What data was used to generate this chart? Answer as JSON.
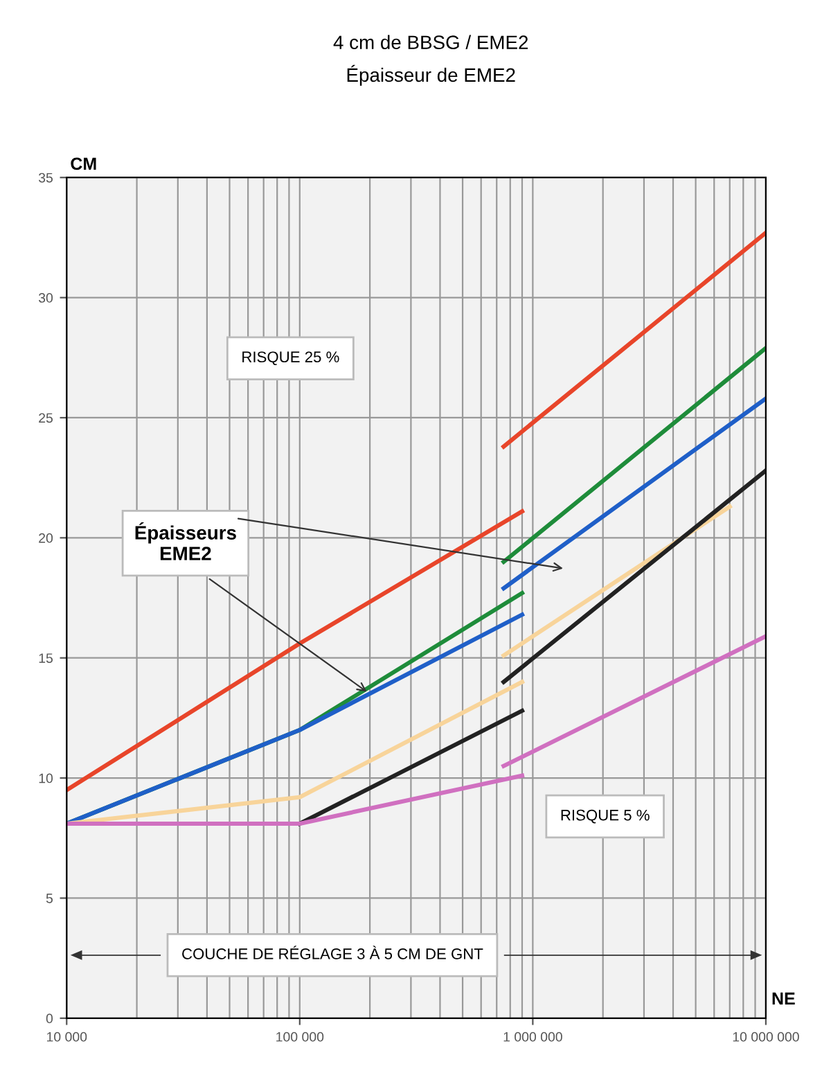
{
  "chart_data": {
    "type": "line",
    "title": "4 cm de BBSG / EME2",
    "subtitle": "Épaisseur de EME2",
    "xlabel": "NE",
    "ylabel": "CM",
    "log": "x",
    "grid": true,
    "marker": "none",
    "line_style": "solid",
    "xlim": [
      10000,
      10000000
    ],
    "xticks": [
      {
        "value": 10000,
        "label": "10 000"
      },
      {
        "value": 100000,
        "label": "100 000"
      },
      {
        "value": 1000000,
        "label": "1 000 000"
      },
      {
        "value": 10000000,
        "label": "10 000 000"
      }
    ],
    "ylim": [
      0,
      35
    ],
    "yticks": [
      0,
      5,
      10,
      15,
      20,
      25,
      30,
      35
    ],
    "series": [
      {
        "color": "#e8452a",
        "x": [
          10000,
          100000,
          900000
        ],
        "values": [
          9.5,
          15.6,
          21.1
        ]
      },
      {
        "color": "#e8452a",
        "x": [
          750000,
          10000000
        ],
        "values": [
          23.8,
          32.7
        ]
      },
      {
        "color": "#1e8c3a",
        "x": [
          10000,
          100000,
          900000
        ],
        "values": [
          8.1,
          12.0,
          17.7
        ]
      },
      {
        "color": "#1e8c3a",
        "x": [
          750000,
          10000000
        ],
        "values": [
          19.0,
          27.9
        ]
      },
      {
        "color": "#1f5fc8",
        "x": [
          10000,
          100000,
          900000
        ],
        "values": [
          8.1,
          12.0,
          16.8
        ]
      },
      {
        "color": "#1f5fc8",
        "x": [
          750000,
          10000000
        ],
        "values": [
          17.9,
          25.8
        ]
      },
      {
        "color": "#f8d49a",
        "x": [
          10000,
          100000,
          900000
        ],
        "values": [
          8.1,
          9.2,
          14.0
        ]
      },
      {
        "color": "#f8d49a",
        "x": [
          750000,
          7000000
        ],
        "values": [
          15.1,
          21.3
        ]
      },
      {
        "color": "#222222",
        "x": [
          100000,
          900000
        ],
        "values": [
          8.1,
          12.8
        ]
      },
      {
        "color": "#222222",
        "x": [
          750000,
          10000000
        ],
        "values": [
          14.0,
          22.8
        ]
      },
      {
        "color": "#d070c0",
        "x": [
          10000,
          100000,
          900000
        ],
        "values": [
          8.1,
          8.1,
          10.1
        ]
      },
      {
        "color": "#d070c0",
        "x": [
          750000,
          10000000
        ],
        "values": [
          10.5,
          15.9
        ]
      }
    ],
    "annotations": [
      "RISQUE 25 %",
      "RISQUE 5 %",
      {
        "text": "Épaisseurs\nEME2",
        "x": 200000,
        "y": 13.5
      },
      "COUCHE DE RÉGLAGE 3 À 5 CM DE GNT"
    ]
  }
}
